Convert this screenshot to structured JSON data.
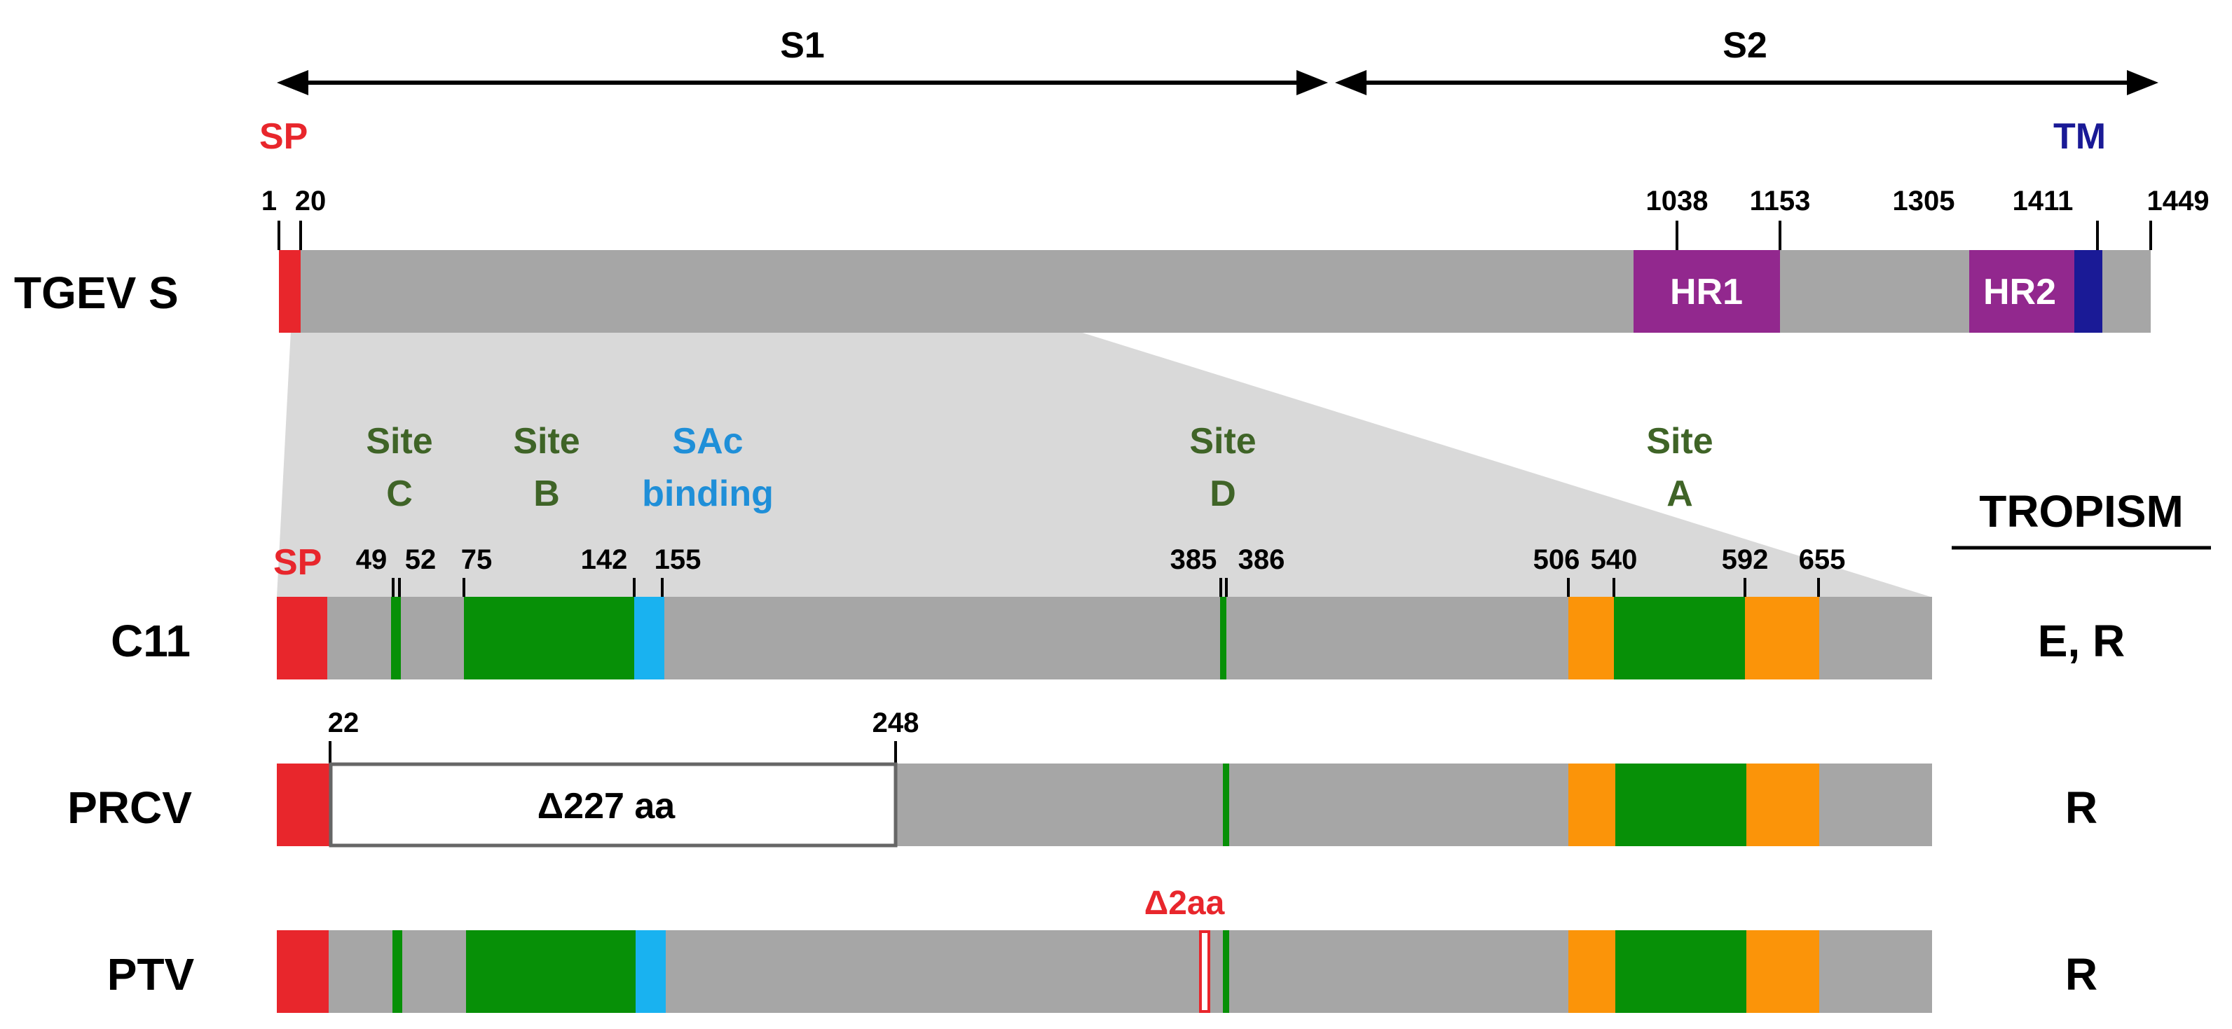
{
  "regions": {
    "s1": "S1",
    "s2": "S2"
  },
  "tgev": {
    "label": "TGEV S",
    "sp_label": "SP",
    "tm_label": "TM",
    "ticks": [
      "1",
      "20",
      "1038",
      "1153",
      "1305",
      "1411",
      "1449"
    ],
    "hr1": "HR1",
    "hr2": "HR2"
  },
  "sites": {
    "site_c": [
      "Site",
      "C"
    ],
    "site_b": [
      "Site",
      "B"
    ],
    "sac": [
      "SAc",
      "binding"
    ],
    "site_d": [
      "Site",
      "D"
    ],
    "site_a": [
      "Site",
      "A"
    ]
  },
  "c11": {
    "label": "C11",
    "sp_label": "SP",
    "ticks": [
      "49",
      "52",
      "75",
      "142",
      "155",
      "385",
      "386",
      "506",
      "540",
      "592",
      "655"
    ],
    "tropism": "E, R"
  },
  "prcv": {
    "label": "PRCV",
    "ticks": [
      "22",
      "248"
    ],
    "deletion": "Δ227 aa",
    "tropism": "R"
  },
  "ptv": {
    "label": "PTV",
    "deletion": "Δ2aa",
    "tropism": "R"
  },
  "tropism_header": "TROPISM",
  "colors": {
    "gray": "#a6a6a6",
    "light_gray": "#d9d9d9",
    "red": "#e8262c",
    "green": "#079007",
    "blue": "#19b2f0",
    "orange": "#fb9409",
    "purple": "#92288e",
    "navy": "#1a1a96"
  }
}
